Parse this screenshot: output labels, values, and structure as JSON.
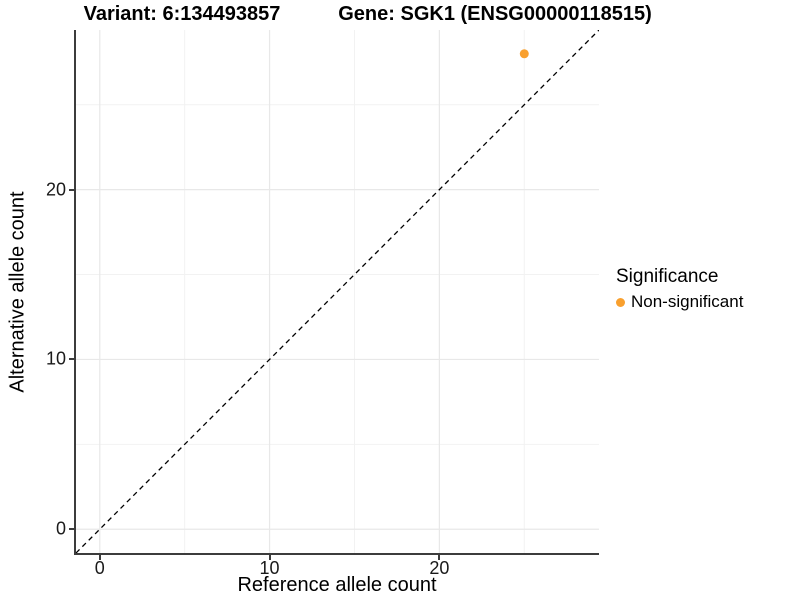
{
  "chart_data": {
    "type": "scatter",
    "titles": {
      "left": "Variant: 6:134493857",
      "right": "Gene: SGK1 (ENSG00000118515)"
    },
    "xlabel": "Reference allele count",
    "ylabel": "Alternative allele count",
    "xlim": [
      -1.4,
      29.4
    ],
    "ylim": [
      -1.4,
      29.4
    ],
    "x_ticks": [
      0,
      10,
      20
    ],
    "y_ticks": [
      0,
      10,
      20
    ],
    "minor_ticks": [
      5,
      15,
      25
    ],
    "grid": true,
    "identity_line": {
      "slope": 1,
      "intercept": 0,
      "style": "dashed",
      "color": "#000000"
    },
    "series": [
      {
        "name": "Non-significant",
        "color": "#F9A02E",
        "marker": "circle",
        "points": [
          {
            "x": 25,
            "y": 28
          }
        ]
      }
    ],
    "legend": {
      "title": "Significance",
      "position": "right",
      "entries": [
        {
          "label": "Non-significant",
          "color": "#F9A02E",
          "marker": "circle"
        }
      ]
    }
  },
  "colors": {
    "point": "#F9A02E",
    "grid_major": "#e8e8e8",
    "grid_minor": "#f2f2f2",
    "axis_line": "#3c3c3c",
    "dashed_line": "#000000"
  }
}
